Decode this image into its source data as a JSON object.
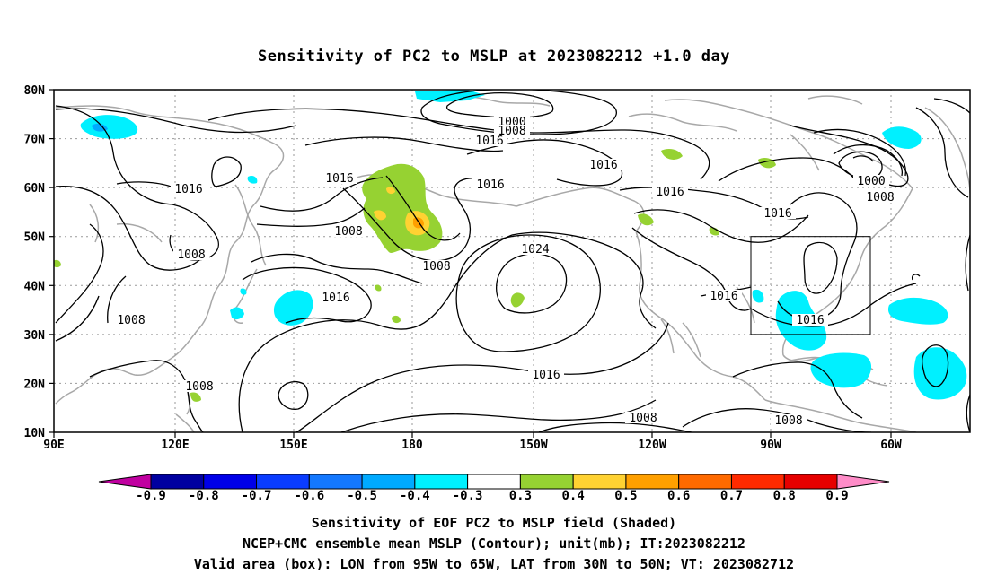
{
  "title": "Sensitivity of PC2 to MSLP at 2023082212 +1.0 day",
  "axes": {
    "lat_labels": [
      "80N",
      "70N",
      "60N",
      "50N",
      "40N",
      "30N",
      "20N",
      "10N"
    ],
    "lon_labels": [
      "90E",
      "120E",
      "150E",
      "180",
      "150W",
      "120W",
      "90W",
      "60W"
    ],
    "lon_range": [
      "90E",
      "45W"
    ],
    "lat_range": [
      "10N",
      "80N"
    ],
    "grid": "dotted"
  },
  "contour_labels": [
    "1000",
    "1008",
    "1016",
    "1016",
    "1016",
    "1016",
    "1016",
    "1000",
    "1008",
    "1016",
    "1008",
    "1016",
    "1008",
    "1024",
    "1008",
    "1016",
    "1016",
    "1016",
    "1008",
    "1008",
    "1016",
    "1008",
    "1008"
  ],
  "colorbar": {
    "labels": [
      "-0.9",
      "-0.8",
      "-0.7",
      "-0.6",
      "-0.5",
      "-0.4",
      "-0.3",
      "0.3",
      "0.4",
      "0.5",
      "0.6",
      "0.7",
      "0.8",
      "0.9"
    ],
    "colors": [
      "#0000a0",
      "#0000e8",
      "#0a3cff",
      "#1478ff",
      "#00aaff",
      "#00f0ff",
      "#ffffff",
      "#96d232",
      "#ffd232",
      "#ffa000",
      "#ff6a00",
      "#ff2a00",
      "#e60000"
    ],
    "low_extend_color": "#c000a0",
    "high_extend_color": "#ff8cc8"
  },
  "valid_box": {
    "lon_from": "95W",
    "lon_to": "65W",
    "lat_from": "30N",
    "lat_to": "50N"
  },
  "footer": {
    "line1": "Sensitivity of EOF PC2 to MSLP field (Shaded)",
    "line2": "NCEP+CMC ensemble mean MSLP (Contour); unit(mb); IT:2023082212",
    "line3": "Valid area (box): LON from 95W to 65W, LAT from 30N to 50N; VT: 2023082712"
  }
}
